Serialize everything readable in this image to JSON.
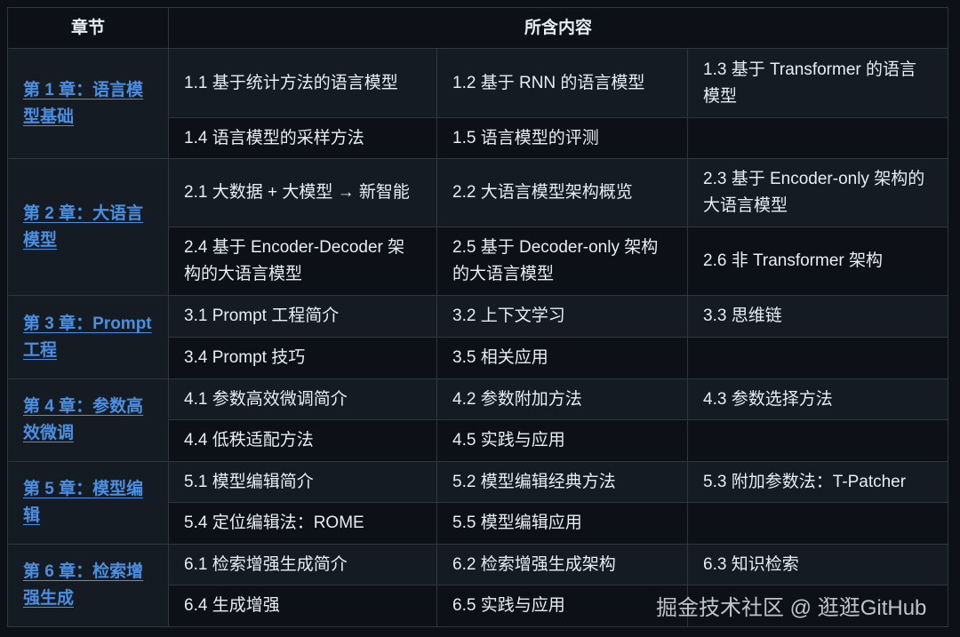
{
  "header": {
    "col1": "章节",
    "col2": "所含内容"
  },
  "chapters": [
    {
      "title": "第 1 章：语言模型基础",
      "rows": [
        [
          "1.1 基于统计方法的语言模型",
          "1.2 基于 RNN 的语言模型",
          "1.3 基于 Transformer 的语言模型"
        ],
        [
          "1.4 语言模型的采样方法",
          "1.5 语言模型的评测",
          ""
        ]
      ]
    },
    {
      "title": "第 2 章：大语言模型",
      "rows": [
        [
          "2.1 大数据 + 大模型 → 新智能",
          "2.2 大语言模型架构概览",
          "2.3 基于 Encoder-only 架构的大语言模型"
        ],
        [
          "2.4 基于 Encoder-Decoder 架构的大语言模型",
          "2.5 基于 Decoder-only 架构的大语言模型",
          "2.6 非 Transformer 架构"
        ]
      ]
    },
    {
      "title": "第 3 章：Prompt 工程",
      "rows": [
        [
          "3.1 Prompt 工程简介",
          "3.2 上下文学习",
          "3.3 思维链"
        ],
        [
          "3.4 Prompt 技巧",
          "3.5 相关应用",
          ""
        ]
      ]
    },
    {
      "title": "第 4 章：参数高效微调",
      "rows": [
        [
          "4.1 参数高效微调简介",
          "4.2 参数附加方法",
          "4.3 参数选择方法"
        ],
        [
          "4.4 低秩适配方法",
          "4.5 实践与应用",
          ""
        ]
      ]
    },
    {
      "title": "第 5 章：模型编辑",
      "rows": [
        [
          "5.1 模型编辑简介",
          "5.2 模型编辑经典方法",
          "5.3 附加参数法：T-Patcher"
        ],
        [
          "5.4 定位编辑法：ROME",
          "5.5 模型编辑应用",
          ""
        ]
      ]
    },
    {
      "title": "第 6 章：检索增强生成",
      "rows": [
        [
          "6.1 检索增强生成简介",
          "6.2 检索增强生成架构",
          "6.3 知识检索"
        ],
        [
          "6.4 生成增强",
          "6.5 实践与应用",
          ""
        ]
      ]
    }
  ],
  "watermark": "掘金技术社区 @ 逛逛GitHub",
  "colors": {
    "background": "#0d1117",
    "stripe": "#151b23",
    "border": "#30363d",
    "link": "#4b8fe3"
  }
}
